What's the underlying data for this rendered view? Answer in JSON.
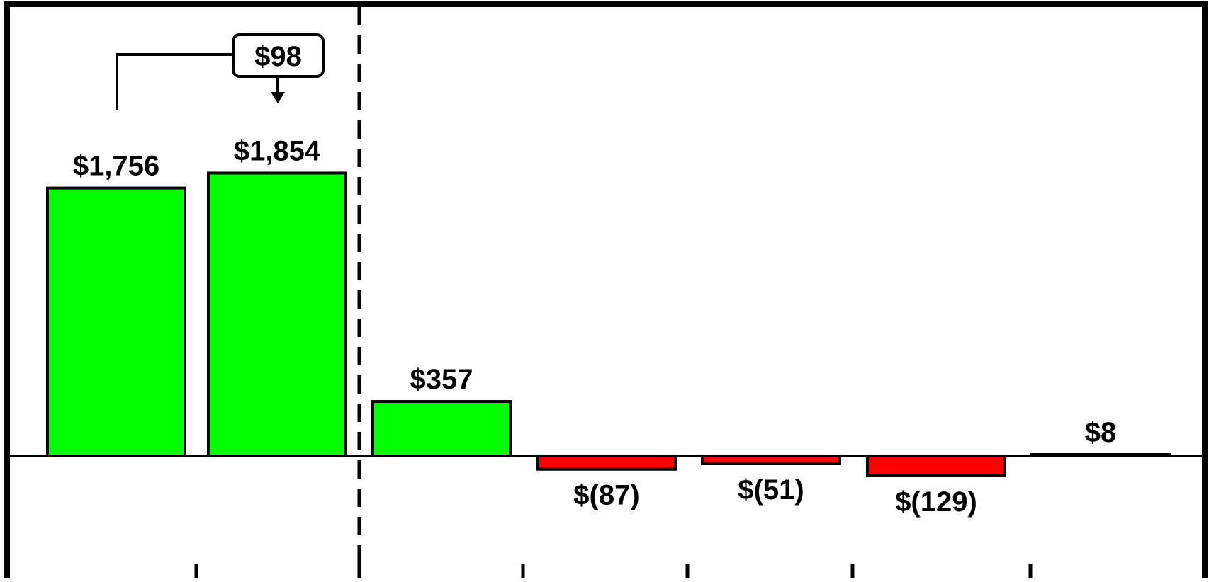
{
  "chart_data": {
    "type": "bar",
    "categories": [
      "",
      "",
      "",
      "",
      "",
      "",
      ""
    ],
    "values": [
      1756,
      1854,
      357,
      -87,
      -51,
      -129,
      8
    ],
    "value_labels": [
      "$1,756",
      "$1,854",
      "$357",
      "$(87)",
      "$(51)",
      "$(129)",
      "$8"
    ],
    "colors": {
      "positive": "#00ff00",
      "negative": "#ff0000",
      "outline": "#000000",
      "frame": "#000000"
    },
    "grid": false,
    "divider_after_category_index": 1,
    "callout": {
      "label": "$98",
      "from_index": 0,
      "to_index": 1,
      "value": 98
    },
    "xlabel": "",
    "ylabel": ""
  }
}
